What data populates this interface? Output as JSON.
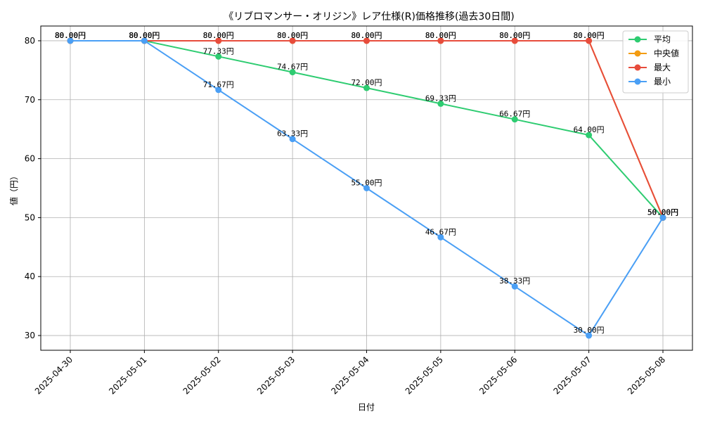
{
  "chart_data": {
    "type": "line",
    "title": "《リブロマンサー・オリジン》レア仕様(R)価格推移(過去30日間)",
    "xlabel": "日付",
    "ylabel": "値（円）",
    "ylim": [
      27.5,
      82.5
    ],
    "yticks": [
      30,
      40,
      50,
      60,
      70,
      80
    ],
    "grid": true,
    "legend_position": "top-right",
    "label_suffix": "円",
    "categories": [
      "2025-04-30",
      "2025-05-01",
      "2025-05-02",
      "2025-05-03",
      "2025-05-04",
      "2025-05-05",
      "2025-05-06",
      "2025-05-07",
      "2025-05-08"
    ],
    "series": [
      {
        "name": "平均",
        "color": "#2ecc71",
        "values": [
          80.0,
          80.0,
          77.33,
          74.67,
          72.0,
          69.33,
          66.67,
          64.0,
          50.0
        ]
      },
      {
        "name": "中央値",
        "color": "#f39c12",
        "values": [
          80.0,
          80.0,
          80.0,
          80.0,
          80.0,
          80.0,
          80.0,
          80.0,
          50.0
        ]
      },
      {
        "name": "最大",
        "color": "#e74c3c",
        "values": [
          80.0,
          80.0,
          80.0,
          80.0,
          80.0,
          80.0,
          80.0,
          80.0,
          50.0
        ]
      },
      {
        "name": "最小",
        "color": "#4a9ff5",
        "values": [
          80.0,
          80.0,
          71.67,
          63.33,
          55.0,
          46.67,
          38.33,
          30.0,
          50.0
        ]
      }
    ]
  }
}
